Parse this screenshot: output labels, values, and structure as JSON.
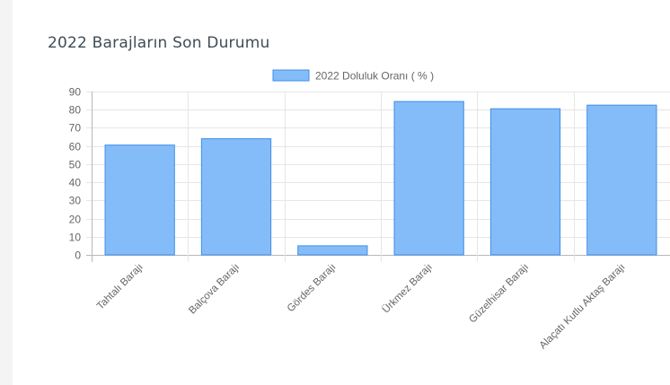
{
  "card": {
    "title": "2022 Barajların Son Durumu"
  },
  "chart_data": {
    "type": "bar",
    "title": "",
    "xlabel": "",
    "ylabel": "",
    "categories": [
      "Tahtalı Barajı",
      "Balçova Barajı",
      "Gördes Barajı",
      "Ürkmez Barajı",
      "Güzelhisar Barajı",
      "Alaçatı Kutlu Aktaş Barajı"
    ],
    "series": [
      {
        "name": "2022 Doluluk Oranı ( % )",
        "values": [
          60.5,
          64,
          5,
          84.5,
          80.5,
          82.5
        ]
      }
    ],
    "ylim": [
      0,
      90
    ],
    "yticks": [
      0,
      10,
      20,
      30,
      40,
      50,
      60,
      70,
      80,
      90
    ],
    "grid": true,
    "legend": "top",
    "colors": {
      "bar_fill": "#84bcf9",
      "bar_stroke": "#3f8ee8",
      "grid": "#e6e6e6",
      "axis": "#b8b8b8",
      "text": "#666666"
    }
  }
}
